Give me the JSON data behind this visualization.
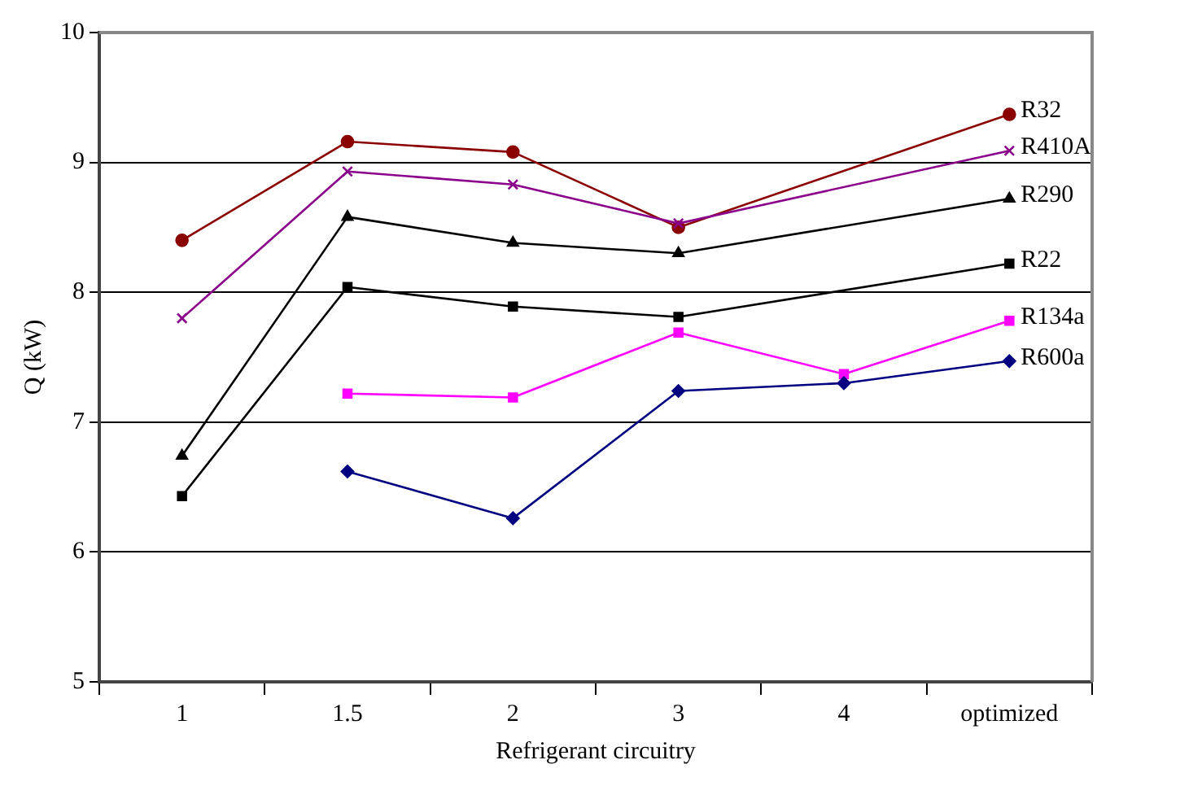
{
  "chart_data": {
    "type": "line",
    "xlabel": "Refrigerant circuitry",
    "ylabel": "Q (kW)",
    "categories": [
      "1",
      "1.5",
      "2",
      "3",
      "4",
      "optimized"
    ],
    "series": [
      {
        "name": "R32",
        "color": "#8b0000",
        "marker": "circle",
        "values": [
          8.4,
          9.16,
          9.08,
          8.5,
          null,
          9.37
        ]
      },
      {
        "name": "R410A",
        "color": "#8b008b",
        "marker": "cross",
        "values": [
          7.8,
          8.93,
          8.83,
          8.53,
          null,
          9.09
        ]
      },
      {
        "name": "R290",
        "color": "#000000",
        "marker": "triangle",
        "values": [
          6.74,
          8.58,
          8.38,
          8.3,
          null,
          8.72
        ]
      },
      {
        "name": "R22",
        "color": "#000000",
        "marker": "square",
        "values": [
          6.43,
          8.04,
          7.89,
          7.81,
          null,
          8.22
        ]
      },
      {
        "name": "R134a",
        "color": "#ff00ff",
        "marker": "square",
        "values": [
          null,
          7.22,
          7.19,
          7.69,
          7.37,
          7.78
        ]
      },
      {
        "name": "R600a",
        "color": "#000080",
        "marker": "diamond",
        "values": [
          null,
          6.62,
          6.26,
          7.24,
          7.3,
          7.47
        ]
      }
    ],
    "ylim": [
      5,
      10
    ],
    "yticks": [
      5,
      6,
      7,
      8,
      9,
      10
    ],
    "grid": "y",
    "legend": false,
    "line_style": "solid"
  }
}
